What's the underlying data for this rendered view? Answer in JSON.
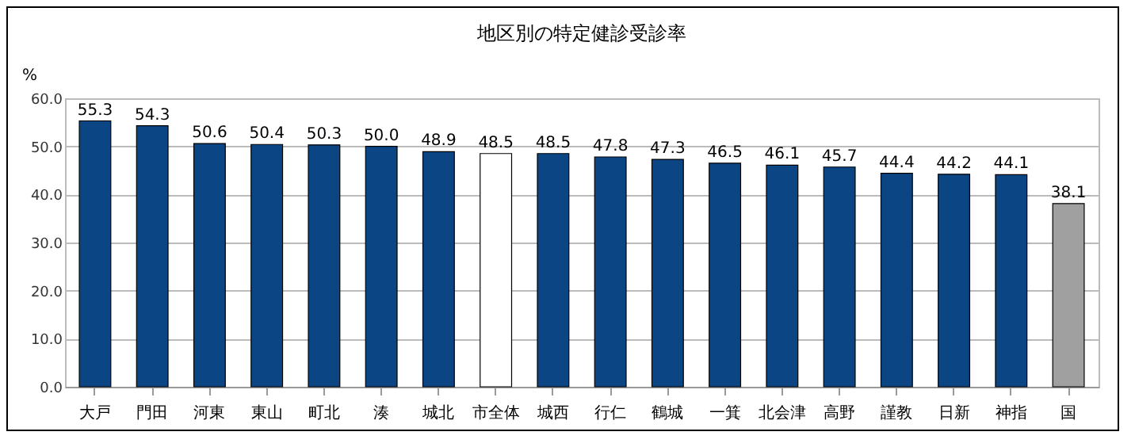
{
  "chart_data": {
    "type": "bar",
    "title": "地区別の特定健診受診率",
    "ylabel": "%",
    "categories": [
      "大戸",
      "門田",
      "河東",
      "東山",
      "町北",
      "湊",
      "城北",
      "市全体",
      "城西",
      "行仁",
      "鶴城",
      "一箕",
      "北会津",
      "高野",
      "謹教",
      "日新",
      "神指",
      "国"
    ],
    "values": [
      55.3,
      54.3,
      50.6,
      50.4,
      50.3,
      50.0,
      48.9,
      48.5,
      48.5,
      47.8,
      47.3,
      46.5,
      46.1,
      45.7,
      44.4,
      44.2,
      44.1,
      38.1
    ],
    "colors": [
      "#0b4584",
      "#0b4584",
      "#0b4584",
      "#0b4584",
      "#0b4584",
      "#0b4584",
      "#0b4584",
      "#ffffff",
      "#0b4584",
      "#0b4584",
      "#0b4584",
      "#0b4584",
      "#0b4584",
      "#0b4584",
      "#0b4584",
      "#0b4584",
      "#0b4584",
      "#a0a0a0"
    ],
    "ylim": [
      0,
      60
    ],
    "yticks": [
      {
        "value": 0,
        "label": "0.0"
      },
      {
        "value": 10,
        "label": "10.0"
      },
      {
        "value": 20,
        "label": "20.0"
      },
      {
        "value": 30,
        "label": "30.0"
      },
      {
        "value": 40,
        "label": "40.0"
      },
      {
        "value": 50,
        "label": "50.0"
      },
      {
        "value": 60,
        "label": "60.0"
      }
    ],
    "value_labels": [
      "55.3",
      "54.3",
      "50.6",
      "50.4",
      "50.3",
      "50.0",
      "48.9",
      "48.5",
      "48.5",
      "47.8",
      "47.3",
      "46.5",
      "46.1",
      "45.7",
      "44.4",
      "44.2",
      "44.1",
      "38.1"
    ],
    "grid": "y"
  }
}
